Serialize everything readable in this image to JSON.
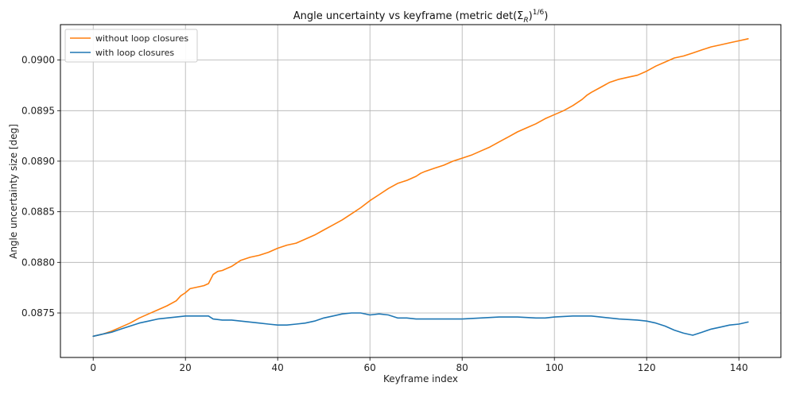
{
  "chart_data": {
    "type": "line",
    "title": {
      "prefix": "Angle uncertainty vs keyframe (metric det(Σ",
      "subscript": "R",
      "middle": ")",
      "superscript": "1/6",
      "suffix": ")"
    },
    "xlabel": "Keyframe index",
    "ylabel": "Angle uncertainty size  [deg]",
    "xlim": [
      -7.1,
      149.1
    ],
    "ylim": [
      0.08706,
      0.09035
    ],
    "xticks": [
      0,
      20,
      40,
      60,
      80,
      100,
      120,
      140
    ],
    "xtick_labels": [
      "0",
      "20",
      "40",
      "60",
      "80",
      "100",
      "120",
      "140"
    ],
    "yticks": [
      0.0875,
      0.088,
      0.0885,
      0.089,
      0.0895,
      0.09
    ],
    "ytick_labels": [
      "0.0875",
      "0.0880",
      "0.0885",
      "0.0890",
      "0.0895",
      "0.0900"
    ],
    "grid": true,
    "legend_position": "top-left",
    "series": [
      {
        "name": "without loop closures",
        "color": "#ff7f0e",
        "x": [
          0,
          2,
          4,
          6,
          8,
          10,
          12,
          14,
          16,
          18,
          19,
          20,
          21,
          22,
          24,
          25,
          26,
          27,
          28,
          29,
          30,
          32,
          34,
          36,
          38,
          40,
          42,
          44,
          46,
          48,
          50,
          52,
          54,
          56,
          58,
          60,
          62,
          64,
          66,
          68,
          70,
          71,
          72,
          74,
          76,
          78,
          80,
          82,
          84,
          86,
          88,
          90,
          92,
          94,
          96,
          98,
          100,
          102,
          104,
          106,
          107,
          108,
          110,
          112,
          114,
          116,
          118,
          120,
          122,
          124,
          126,
          128,
          130,
          132,
          134,
          136,
          138,
          140,
          142
        ],
        "y": [
          0.08727,
          0.08729,
          0.08732,
          0.08736,
          0.0874,
          0.08745,
          0.08749,
          0.08753,
          0.08757,
          0.08762,
          0.08767,
          0.0877,
          0.08774,
          0.08775,
          0.08777,
          0.08779,
          0.08788,
          0.08791,
          0.08792,
          0.08794,
          0.08796,
          0.08802,
          0.08805,
          0.08807,
          0.0881,
          0.08814,
          0.08817,
          0.08819,
          0.08823,
          0.08827,
          0.08832,
          0.08837,
          0.08842,
          0.08848,
          0.08854,
          0.08861,
          0.08867,
          0.08873,
          0.08878,
          0.08881,
          0.08885,
          0.08888,
          0.0889,
          0.08893,
          0.08896,
          0.089,
          0.08903,
          0.08906,
          0.0891,
          0.08914,
          0.08919,
          0.08924,
          0.08929,
          0.08933,
          0.08937,
          0.08942,
          0.08946,
          0.0895,
          0.08955,
          0.08961,
          0.08965,
          0.08968,
          0.08973,
          0.08978,
          0.08981,
          0.08983,
          0.08985,
          0.08989,
          0.08994,
          0.08998,
          0.09002,
          0.09004,
          0.09007,
          0.0901,
          0.09013,
          0.09015,
          0.09017,
          0.09019,
          0.09021
        ]
      },
      {
        "name": "with loop closures",
        "color": "#1f77b4",
        "x": [
          0,
          2,
          4,
          6,
          8,
          10,
          12,
          14,
          16,
          18,
          20,
          22,
          24,
          25,
          26,
          28,
          30,
          32,
          34,
          36,
          38,
          40,
          42,
          44,
          46,
          48,
          50,
          52,
          54,
          56,
          58,
          60,
          62,
          64,
          66,
          68,
          70,
          74,
          78,
          80,
          84,
          88,
          92,
          96,
          98,
          100,
          104,
          108,
          110,
          114,
          118,
          120,
          122,
          124,
          126,
          128,
          130,
          132,
          134,
          136,
          138,
          140,
          142
        ],
        "y": [
          0.08727,
          0.08729,
          0.08731,
          0.08734,
          0.08737,
          0.0874,
          0.08742,
          0.08744,
          0.08745,
          0.08746,
          0.08747,
          0.08747,
          0.08747,
          0.08747,
          0.08744,
          0.08743,
          0.08743,
          0.08742,
          0.08741,
          0.0874,
          0.08739,
          0.08738,
          0.08738,
          0.08739,
          0.0874,
          0.08742,
          0.08745,
          0.08747,
          0.08749,
          0.0875,
          0.0875,
          0.08748,
          0.08749,
          0.08748,
          0.08745,
          0.08745,
          0.08744,
          0.08744,
          0.08744,
          0.08744,
          0.08745,
          0.08746,
          0.08746,
          0.08745,
          0.08745,
          0.08746,
          0.08747,
          0.08747,
          0.08746,
          0.08744,
          0.08743,
          0.08742,
          0.0874,
          0.08737,
          0.08733,
          0.0873,
          0.08728,
          0.08731,
          0.08734,
          0.08736,
          0.08738,
          0.08739,
          0.08741
        ]
      }
    ]
  }
}
